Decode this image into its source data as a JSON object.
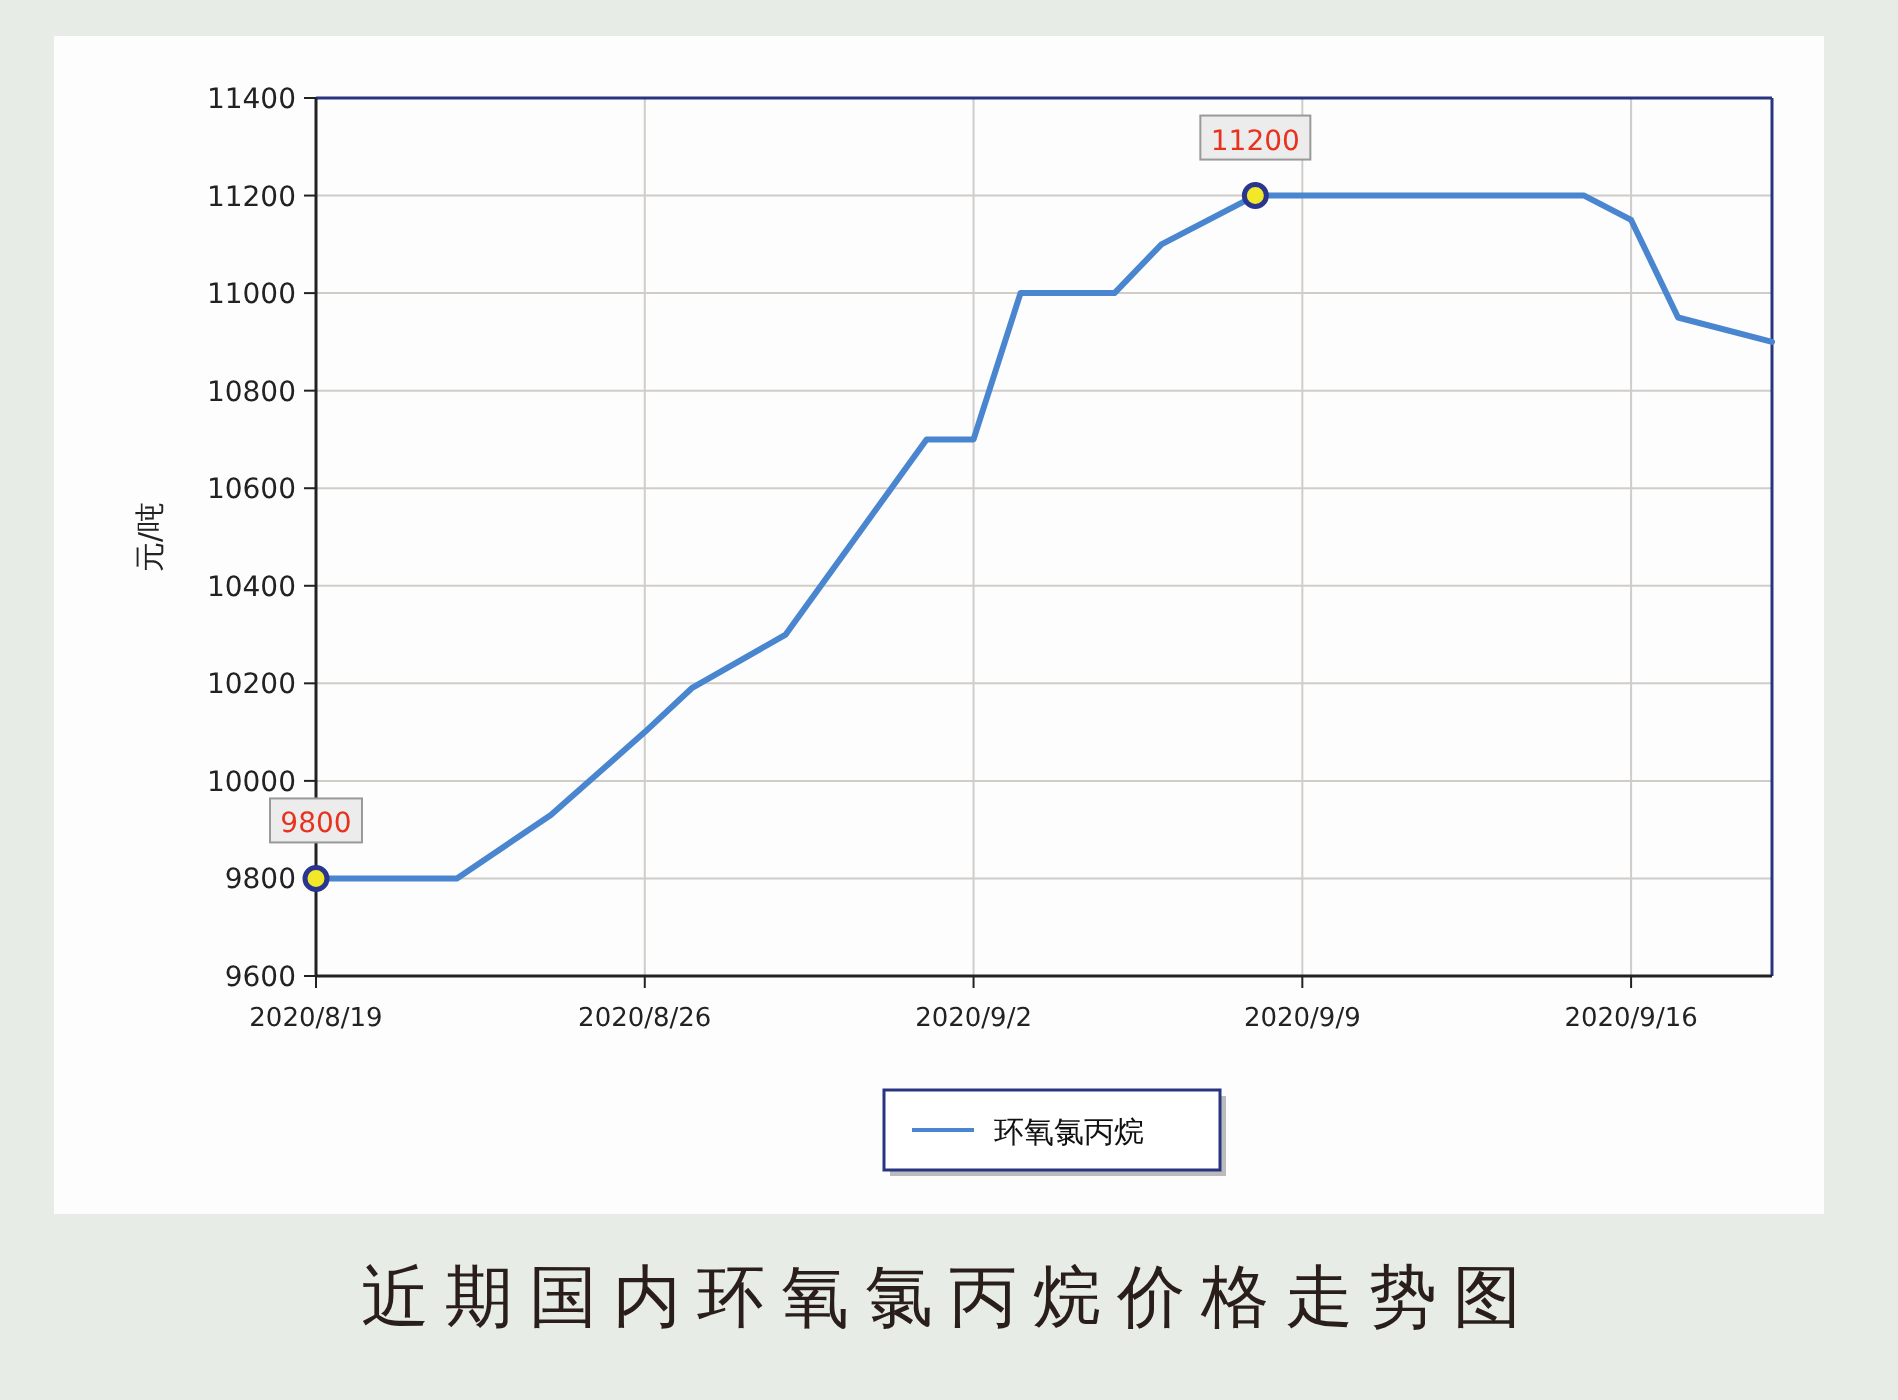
{
  "chart_data": {
    "type": "line",
    "title": "近期国内环氧氯丙烷价格走势图",
    "ylabel": "元/吨",
    "x": [
      "2020-08-19",
      "2020-08-22",
      "2020-08-24",
      "2020-08-26",
      "2020-08-27",
      "2020-08-29",
      "2020-09-01",
      "2020-09-02",
      "2020-09-03",
      "2020-09-05",
      "2020-09-06",
      "2020-09-08",
      "2020-09-15",
      "2020-09-16",
      "2020-09-17",
      "2020-09-19"
    ],
    "series": [
      {
        "name": "环氧氯丙烷",
        "color": "#4a86d0",
        "values": [
          9800,
          9800,
          9930,
          10100,
          10190,
          10300,
          10700,
          10700,
          11000,
          11000,
          11100,
          11200,
          11200,
          11150,
          10950,
          10900
        ]
      }
    ],
    "xlim": [
      "2020-08-19",
      "2020-09-19"
    ],
    "xticks": [
      {
        "value": "2020-08-19",
        "label": "2020/8/19"
      },
      {
        "value": "2020-08-26",
        "label": "2020/8/26"
      },
      {
        "value": "2020-09-02",
        "label": "2020/9/2"
      },
      {
        "value": "2020-09-09",
        "label": "2020/9/9"
      },
      {
        "value": "2020-09-16",
        "label": "2020/9/16"
      }
    ],
    "ylim": [
      9600,
      11400
    ],
    "yticks": [
      9600,
      9800,
      10000,
      10200,
      10400,
      10600,
      10800,
      11000,
      11200,
      11400
    ],
    "annotations": [
      {
        "text": "9800",
        "x": "2020-08-19",
        "y": 9800
      },
      {
        "text": "11200",
        "x": "2020-09-08",
        "y": 11200
      }
    ],
    "grid": true,
    "legend": "bottom",
    "line_style": "solid"
  }
}
